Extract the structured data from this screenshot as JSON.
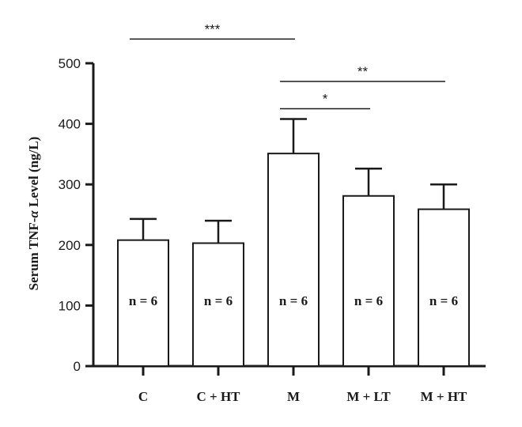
{
  "chart_data": {
    "type": "bar",
    "ylabel_prefix": "Serum TNF-",
    "ylabel_alpha": "α",
    "ylabel_suffix": " Level (ng/L)",
    "ylim": [
      0,
      500
    ],
    "yticks": [
      0,
      100,
      200,
      300,
      400,
      500
    ],
    "categories": [
      "C",
      "C + HT",
      "M",
      "M + LT",
      "M + HT"
    ],
    "values": [
      208,
      203,
      351,
      281,
      259
    ],
    "errors": [
      35,
      37,
      57,
      45,
      41
    ],
    "bar_labels": [
      "n = 6",
      "n = 6",
      "n = 6",
      "n = 6",
      "n = 6"
    ],
    "significance": [
      {
        "from": 0,
        "to": 2,
        "y": 540,
        "label": "***"
      },
      {
        "from": 2,
        "to": 4,
        "y": 470,
        "label": "**"
      },
      {
        "from": 2,
        "to": 3,
        "y": 425,
        "label": "*"
      }
    ],
    "colors": {
      "bar_fill": "#ffffff",
      "stroke": "#1a1a1a"
    }
  }
}
